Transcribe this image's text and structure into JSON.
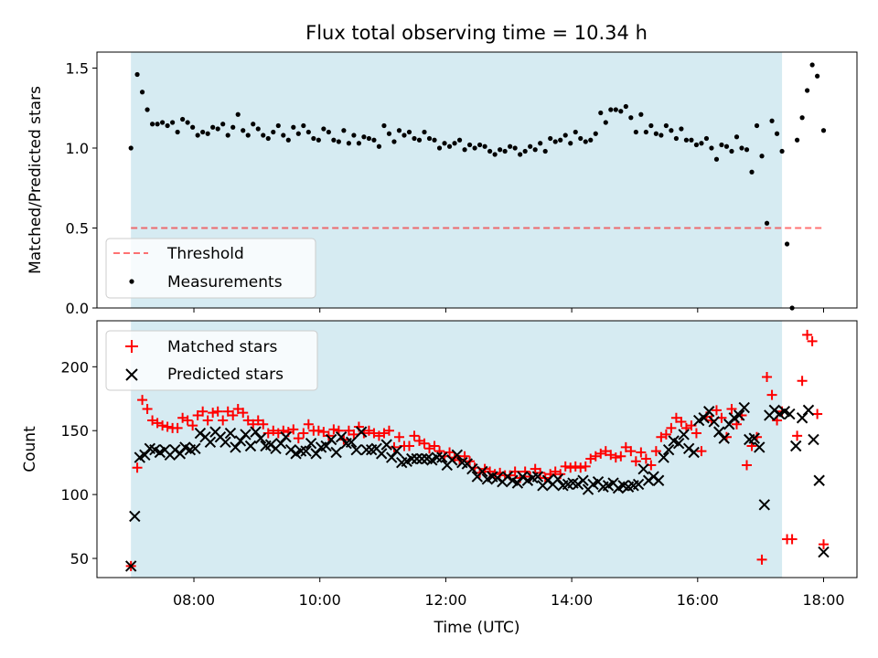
{
  "title": "Flux total observing time = 10.34 h",
  "colors": {
    "shade": "#add8e6",
    "threshold": "#ff0000",
    "measurements": "#000000",
    "matched": "#ff0000",
    "predicted": "#000000"
  },
  "chart_data": [
    {
      "type": "scatter",
      "ylabel": "Matched/Predicted stars",
      "xlim": [
        6.46,
        18.53
      ],
      "ylim": [
        0.0,
        1.6
      ],
      "yticks": [
        0.0,
        0.5,
        1.0,
        1.5
      ],
      "ytick_labels": [
        "0.0",
        "0.5",
        "1.0",
        "1.5"
      ],
      "shaded_span": [
        7.0,
        17.34
      ],
      "threshold": {
        "name": "Threshold",
        "value": 0.5,
        "x": [
          7.0,
          18.0
        ]
      },
      "legend": {
        "location": "lower-left",
        "entries": [
          "Threshold",
          "Measurements"
        ]
      },
      "series": [
        {
          "name": "Measurements",
          "marker": "dot",
          "x": [
            7.0,
            7.1,
            7.18,
            7.26,
            7.34,
            7.42,
            7.5,
            7.58,
            7.66,
            7.74,
            7.82,
            7.9,
            7.98,
            8.06,
            8.14,
            8.22,
            8.3,
            8.38,
            8.46,
            8.54,
            8.62,
            8.7,
            8.78,
            8.86,
            8.94,
            9.02,
            9.1,
            9.18,
            9.26,
            9.34,
            9.42,
            9.5,
            9.58,
            9.66,
            9.74,
            9.82,
            9.9,
            9.98,
            10.06,
            10.14,
            10.22,
            10.3,
            10.38,
            10.46,
            10.54,
            10.62,
            10.7,
            10.78,
            10.86,
            10.94,
            11.02,
            11.1,
            11.18,
            11.26,
            11.34,
            11.42,
            11.5,
            11.58,
            11.66,
            11.74,
            11.82,
            11.9,
            11.98,
            12.06,
            12.14,
            12.22,
            12.3,
            12.38,
            12.46,
            12.54,
            12.62,
            12.7,
            12.78,
            12.86,
            12.94,
            13.02,
            13.1,
            13.18,
            13.26,
            13.34,
            13.42,
            13.5,
            13.58,
            13.66,
            13.74,
            13.82,
            13.9,
            13.98,
            14.06,
            14.14,
            14.22,
            14.3,
            14.38,
            14.46,
            14.54,
            14.62,
            14.7,
            14.78,
            14.86,
            14.94,
            15.02,
            15.1,
            15.18,
            15.26,
            15.34,
            15.42,
            15.5,
            15.58,
            15.66,
            15.74,
            15.82,
            15.9,
            15.98,
            16.06,
            16.14,
            16.22,
            16.3,
            16.38,
            16.46,
            16.54,
            16.62,
            16.7,
            16.78,
            16.86,
            16.94,
            17.02,
            17.1,
            17.18,
            17.26,
            17.34,
            17.42,
            17.5,
            17.58,
            17.66,
            17.74,
            17.82,
            17.9,
            18.0
          ],
          "y": [
            1.0,
            1.46,
            1.35,
            1.24,
            1.15,
            1.15,
            1.16,
            1.14,
            1.16,
            1.1,
            1.18,
            1.16,
            1.13,
            1.08,
            1.1,
            1.09,
            1.13,
            1.12,
            1.15,
            1.08,
            1.13,
            1.21,
            1.11,
            1.08,
            1.15,
            1.12,
            1.08,
            1.06,
            1.1,
            1.14,
            1.08,
            1.05,
            1.13,
            1.09,
            1.14,
            1.1,
            1.06,
            1.05,
            1.12,
            1.1,
            1.05,
            1.04,
            1.11,
            1.03,
            1.08,
            1.03,
            1.07,
            1.06,
            1.05,
            1.01,
            1.14,
            1.09,
            1.04,
            1.11,
            1.08,
            1.1,
            1.06,
            1.05,
            1.1,
            1.06,
            1.05,
            1.0,
            1.03,
            1.01,
            1.03,
            1.05,
            0.99,
            1.02,
            1.0,
            1.02,
            1.01,
            0.98,
            0.96,
            0.99,
            0.98,
            1.01,
            1.0,
            0.96,
            0.98,
            1.01,
            0.99,
            1.03,
            0.98,
            1.06,
            1.04,
            1.05,
            1.08,
            1.03,
            1.1,
            1.06,
            1.04,
            1.05,
            1.09,
            1.22,
            1.16,
            1.24,
            1.24,
            1.23,
            1.26,
            1.19,
            1.1,
            1.21,
            1.1,
            1.14,
            1.09,
            1.08,
            1.14,
            1.11,
            1.06,
            1.12,
            1.05,
            1.05,
            1.02,
            1.03,
            1.06,
            1.0,
            0.93,
            1.02,
            1.01,
            0.98,
            1.07,
            1.0,
            0.99,
            0.85,
            1.14,
            0.95,
            0.53,
            1.17,
            1.09,
            0.98,
            0.4,
            0.0,
            1.05,
            1.19,
            1.36,
            1.52,
            1.45,
            1.11
          ]
        }
      ]
    },
    {
      "type": "scatter",
      "xlabel": "Time (UTC)",
      "ylabel": "Count",
      "xlim": [
        6.46,
        18.53
      ],
      "ylim": [
        35,
        236
      ],
      "xticks": [
        8,
        10,
        12,
        14,
        16,
        18
      ],
      "xtick_labels": [
        "08:00",
        "10:00",
        "12:00",
        "14:00",
        "16:00",
        "18:00"
      ],
      "yticks": [
        50,
        100,
        150,
        200
      ],
      "ytick_labels": [
        "50",
        "100",
        "150",
        "200"
      ],
      "shaded_span": [
        7.0,
        17.34
      ],
      "legend": {
        "location": "upper-left",
        "entries": [
          "Matched stars",
          "Predicted stars"
        ]
      },
      "series": [
        {
          "name": "Matched stars",
          "marker": "plus",
          "x": [
            7.0,
            7.1,
            7.18,
            7.26,
            7.34,
            7.42,
            7.5,
            7.58,
            7.66,
            7.74,
            7.82,
            7.9,
            7.98,
            8.06,
            8.14,
            8.22,
            8.3,
            8.38,
            8.46,
            8.54,
            8.62,
            8.7,
            8.78,
            8.86,
            8.94,
            9.02,
            9.1,
            9.18,
            9.26,
            9.34,
            9.42,
            9.5,
            9.58,
            9.66,
            9.74,
            9.82,
            9.9,
            9.98,
            10.06,
            10.14,
            10.22,
            10.3,
            10.38,
            10.46,
            10.54,
            10.62,
            10.7,
            10.78,
            10.86,
            10.94,
            11.02,
            11.1,
            11.18,
            11.26,
            11.34,
            11.42,
            11.5,
            11.58,
            11.66,
            11.74,
            11.82,
            11.9,
            11.98,
            12.06,
            12.14,
            12.22,
            12.3,
            12.38,
            12.46,
            12.54,
            12.62,
            12.7,
            12.78,
            12.86,
            12.94,
            13.02,
            13.1,
            13.18,
            13.26,
            13.34,
            13.42,
            13.5,
            13.58,
            13.66,
            13.74,
            13.82,
            13.9,
            13.98,
            14.06,
            14.14,
            14.22,
            14.3,
            14.38,
            14.46,
            14.54,
            14.62,
            14.7,
            14.78,
            14.86,
            14.94,
            15.02,
            15.1,
            15.18,
            15.26,
            15.34,
            15.42,
            15.5,
            15.58,
            15.66,
            15.74,
            15.82,
            15.9,
            15.98,
            16.06,
            16.14,
            16.22,
            16.3,
            16.38,
            16.46,
            16.54,
            16.62,
            16.7,
            16.78,
            16.86,
            16.94,
            17.02,
            17.1,
            17.18,
            17.26,
            17.34,
            17.42,
            17.5,
            17.58,
            17.66,
            17.74,
            17.82,
            17.9,
            18.0
          ],
          "y": [
            44,
            121,
            174,
            167,
            158,
            156,
            154,
            153,
            152,
            152,
            160,
            158,
            154,
            162,
            165,
            158,
            164,
            165,
            158,
            165,
            162,
            167,
            164,
            158,
            155,
            158,
            155,
            148,
            150,
            148,
            150,
            149,
            151,
            144,
            148,
            155,
            150,
            150,
            149,
            146,
            151,
            150,
            143,
            150,
            147,
            153,
            148,
            150,
            148,
            146,
            148,
            150,
            137,
            145,
            138,
            138,
            146,
            142,
            140,
            136,
            138,
            134,
            130,
            133,
            129,
            127,
            130,
            126,
            121,
            117,
            120,
            118,
            116,
            117,
            115,
            115,
            118,
            113,
            118,
            114,
            120,
            117,
            113,
            116,
            118,
            116,
            122,
            121,
            122,
            121,
            122,
            128,
            130,
            132,
            134,
            131,
            129,
            130,
            137,
            134,
            126,
            133,
            128,
            123,
            134,
            145,
            147,
            152,
            160,
            157,
            152,
            154,
            148,
            134,
            161,
            158,
            166,
            160,
            145,
            167,
            155,
            162,
            123,
            138,
            145,
            49,
            192,
            178,
            158,
            165,
            65,
            65,
            146,
            189,
            225,
            220,
            163,
            61
          ]
        },
        {
          "name": "Predicted stars",
          "marker": "x",
          "x": [
            7.0,
            7.06,
            7.14,
            7.22,
            7.3,
            7.38,
            7.46,
            7.54,
            7.62,
            7.7,
            7.78,
            7.86,
            7.94,
            8.02,
            8.1,
            8.18,
            8.26,
            8.34,
            8.42,
            8.5,
            8.58,
            8.66,
            8.74,
            8.82,
            8.9,
            8.98,
            9.06,
            9.14,
            9.22,
            9.3,
            9.38,
            9.46,
            9.54,
            9.62,
            9.7,
            9.78,
            9.86,
            9.94,
            10.02,
            10.1,
            10.18,
            10.26,
            10.34,
            10.42,
            10.5,
            10.58,
            10.66,
            10.74,
            10.82,
            10.9,
            10.98,
            11.06,
            11.14,
            11.22,
            11.3,
            11.38,
            11.46,
            11.54,
            11.62,
            11.7,
            11.78,
            11.86,
            11.94,
            12.02,
            12.1,
            12.18,
            12.26,
            12.34,
            12.42,
            12.5,
            12.58,
            12.66,
            12.74,
            12.82,
            12.9,
            12.98,
            13.06,
            13.14,
            13.22,
            13.3,
            13.38,
            13.46,
            13.54,
            13.62,
            13.7,
            13.78,
            13.86,
            13.94,
            14.02,
            14.1,
            14.18,
            14.26,
            14.34,
            14.42,
            14.5,
            14.58,
            14.66,
            14.74,
            14.82,
            14.9,
            14.98,
            15.06,
            15.14,
            15.22,
            15.3,
            15.38,
            15.46,
            15.54,
            15.62,
            15.7,
            15.78,
            15.86,
            15.94,
            16.02,
            16.1,
            16.18,
            16.26,
            16.34,
            16.42,
            16.5,
            16.58,
            16.66,
            16.74,
            16.82,
            16.9,
            16.98,
            17.06,
            17.14,
            17.22,
            17.3,
            17.38,
            17.46,
            17.56,
            17.66,
            17.76,
            17.84,
            17.93,
            18.0
          ],
          "y": [
            44,
            83,
            129,
            131,
            136,
            135,
            133,
            135,
            131,
            135,
            132,
            137,
            135,
            136,
            148,
            145,
            141,
            149,
            145,
            141,
            148,
            137,
            142,
            147,
            138,
            149,
            144,
            138,
            139,
            136,
            140,
            145,
            135,
            132,
            134,
            134,
            140,
            132,
            137,
            138,
            143,
            133,
            145,
            140,
            141,
            135,
            149,
            135,
            135,
            136,
            132,
            139,
            129,
            134,
            125,
            126,
            128,
            128,
            128,
            128,
            127,
            129,
            129,
            123,
            127,
            131,
            125,
            124,
            120,
            114,
            118,
            112,
            114,
            113,
            110,
            114,
            111,
            109,
            114,
            111,
            113,
            114,
            107,
            111,
            108,
            112,
            107,
            108,
            109,
            108,
            111,
            104,
            108,
            110,
            106,
            107,
            109,
            105,
            107,
            106,
            107,
            108,
            120,
            111,
            114,
            111,
            129,
            135,
            142,
            140,
            147,
            136,
            133,
            158,
            160,
            165,
            157,
            149,
            144,
            155,
            160,
            162,
            168,
            143,
            144,
            137,
            92,
            162,
            166,
            163,
            165,
            163,
            138,
            160,
            166,
            143,
            111,
            55
          ]
        }
      ]
    }
  ]
}
